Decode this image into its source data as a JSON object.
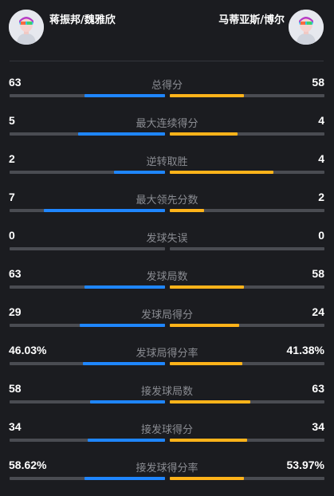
{
  "players": {
    "left": {
      "name": "蒋振邦/魏雅欣",
      "avatar_icon": "user-avatar-icon"
    },
    "right": {
      "name": "马蒂亚斯/博尔",
      "avatar_icon": "user-avatar-icon"
    }
  },
  "colors": {
    "left": "#1f86ff",
    "right": "#ffb31a",
    "track": "#4a4c52",
    "label": "#8a8c92"
  },
  "stats": [
    {
      "label": "总得分",
      "left": "63",
      "right": "58",
      "left_fill": 0.52,
      "right_fill": 0.48
    },
    {
      "label": "最大连续得分",
      "left": "5",
      "right": "4",
      "left_fill": 0.56,
      "right_fill": 0.44
    },
    {
      "label": "逆转取胜",
      "left": "2",
      "right": "4",
      "left_fill": 0.33,
      "right_fill": 0.67
    },
    {
      "label": "最大领先分数",
      "left": "7",
      "right": "2",
      "left_fill": 0.78,
      "right_fill": 0.22
    },
    {
      "label": "发球失误",
      "left": "0",
      "right": "0",
      "left_fill": 0,
      "right_fill": 0
    },
    {
      "label": "发球局数",
      "left": "63",
      "right": "58",
      "left_fill": 0.52,
      "right_fill": 0.48
    },
    {
      "label": "发球局得分",
      "left": "29",
      "right": "24",
      "left_fill": 0.55,
      "right_fill": 0.45
    },
    {
      "label": "发球局得分率",
      "left": "46.03%",
      "right": "41.38%",
      "left_fill": 0.53,
      "right_fill": 0.47
    },
    {
      "label": "接发球局数",
      "left": "58",
      "right": "63",
      "left_fill": 0.48,
      "right_fill": 0.52
    },
    {
      "label": "接发球得分",
      "left": "34",
      "right": "34",
      "left_fill": 0.5,
      "right_fill": 0.5
    },
    {
      "label": "接发球得分率",
      "left": "58.62%",
      "right": "53.97%",
      "left_fill": 0.52,
      "right_fill": 0.48
    }
  ]
}
